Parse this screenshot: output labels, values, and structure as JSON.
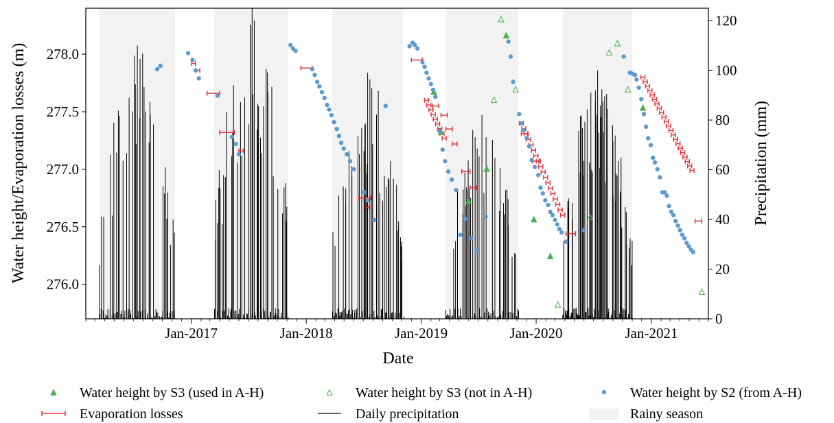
{
  "chart_data": {
    "type": "scatter",
    "xlabel": "Date",
    "ylabel_left": "Water height/Evaporation losses (m)",
    "ylabel_right": "Precipitation (mm)",
    "xlim": [
      "2016-02-01",
      "2021-07-01"
    ],
    "ylim_left": [
      275.7,
      278.4
    ],
    "ylim_right": [
      0,
      125
    ],
    "x_ticks": [
      {
        "date": "2017-01-01",
        "label": "Jan-2017"
      },
      {
        "date": "2018-01-01",
        "label": "Jan-2018"
      },
      {
        "date": "2019-01-01",
        "label": "Jan-2019"
      },
      {
        "date": "2020-01-01",
        "label": "Jan-2020"
      },
      {
        "date": "2021-01-01",
        "label": "Jan-2021"
      }
    ],
    "y_left_ticks": [
      "276.0",
      "276.5",
      "277.0",
      "277.5",
      "278.0"
    ],
    "y_left_tick_values": [
      276.0,
      276.5,
      277.0,
      277.5,
      278.0
    ],
    "y_right_ticks": [
      "0",
      "20",
      "40",
      "60",
      "80",
      "100",
      "120"
    ],
    "y_right_tick_values": [
      0,
      20,
      40,
      60,
      80,
      100,
      120
    ],
    "rainy_seasons": [
      [
        "2016-03-15",
        "2016-11-10"
      ],
      [
        "2017-03-15",
        "2017-11-05"
      ],
      [
        "2018-03-25",
        "2018-11-05"
      ],
      [
        "2019-03-20",
        "2019-11-05"
      ],
      [
        "2020-03-25",
        "2020-11-01"
      ]
    ],
    "precip_bursts": [
      [
        "2016-03-15",
        "2016-11-10",
        82,
        110
      ],
      [
        "2017-03-15",
        "2017-11-05",
        92,
        125
      ],
      [
        "2018-03-25",
        "2018-11-05",
        90,
        99
      ],
      [
        "2019-03-20",
        "2019-11-05",
        78,
        82
      ],
      [
        "2020-03-25",
        "2020-11-01",
        120,
        100
      ]
    ],
    "s2_points": [
      [
        "2016-09-15",
        277.87
      ],
      [
        "2016-09-25",
        277.9
      ],
      [
        "2016-12-22",
        278.01
      ],
      [
        "2017-01-05",
        277.95
      ],
      [
        "2017-01-15",
        277.86
      ],
      [
        "2017-01-25",
        277.79
      ],
      [
        "2017-03-25",
        277.64
      ],
      [
        "2017-05-10",
        277.28
      ],
      [
        "2017-05-22",
        277.22
      ],
      [
        "2017-06-01",
        277.13
      ],
      [
        "2017-11-12",
        278.08
      ],
      [
        "2017-11-20",
        278.05
      ],
      [
        "2017-11-28",
        278.03
      ],
      [
        "2018-01-20",
        277.87
      ],
      [
        "2018-01-28",
        277.82
      ],
      [
        "2018-02-05",
        277.76
      ],
      [
        "2018-02-12",
        277.72
      ],
      [
        "2018-02-20",
        277.67
      ],
      [
        "2018-02-28",
        277.62
      ],
      [
        "2018-03-08",
        277.56
      ],
      [
        "2018-03-15",
        277.52
      ],
      [
        "2018-03-22",
        277.47
      ],
      [
        "2018-03-30",
        277.41
      ],
      [
        "2018-04-08",
        277.35
      ],
      [
        "2018-04-15",
        277.29
      ],
      [
        "2018-04-22",
        277.23
      ],
      [
        "2018-04-30",
        277.18
      ],
      [
        "2018-05-10",
        277.13
      ],
      [
        "2018-05-20",
        277.07
      ],
      [
        "2018-06-01",
        277.0
      ],
      [
        "2018-07-05",
        276.8
      ],
      [
        "2018-07-15",
        276.73
      ],
      [
        "2018-08-05",
        276.56
      ],
      [
        "2018-09-10",
        277.55
      ],
      [
        "2018-11-25",
        278.07
      ],
      [
        "2018-12-05",
        278.1
      ],
      [
        "2018-12-12",
        278.08
      ],
      [
        "2018-12-20",
        278.05
      ],
      [
        "2019-01-05",
        277.93
      ],
      [
        "2019-01-12",
        277.89
      ],
      [
        "2019-01-18",
        277.84
      ],
      [
        "2019-01-25",
        277.79
      ],
      [
        "2019-02-01",
        277.74
      ],
      [
        "2019-02-08",
        277.69
      ],
      [
        "2019-02-15",
        277.63
      ],
      [
        "2019-03-01",
        277.33
      ],
      [
        "2019-03-10",
        277.17
      ],
      [
        "2019-03-18",
        277.07
      ],
      [
        "2019-03-28",
        276.98
      ],
      [
        "2019-04-08",
        276.91
      ],
      [
        "2019-04-22",
        276.82
      ],
      [
        "2019-05-05",
        276.43
      ],
      [
        "2019-05-20",
        276.57
      ],
      [
        "2019-06-10",
        276.4
      ],
      [
        "2019-06-25",
        276.3
      ],
      [
        "2019-07-25",
        276.59
      ],
      [
        "2019-10-05",
        278.11
      ],
      [
        "2019-10-12",
        277.98
      ],
      [
        "2019-10-20",
        277.76
      ],
      [
        "2019-11-08",
        277.48
      ],
      [
        "2019-11-15",
        277.4
      ],
      [
        "2019-11-22",
        277.34
      ],
      [
        "2019-12-02",
        277.27
      ],
      [
        "2019-12-10",
        277.2
      ],
      [
        "2019-12-18",
        277.08
      ],
      [
        "2019-12-28",
        277.02
      ],
      [
        "2020-01-08",
        276.95
      ],
      [
        "2020-01-15",
        276.84
      ],
      [
        "2020-01-22",
        276.79
      ],
      [
        "2020-01-30",
        276.73
      ],
      [
        "2020-02-08",
        276.69
      ],
      [
        "2020-02-15",
        276.63
      ],
      [
        "2020-02-22",
        276.6
      ],
      [
        "2020-03-01",
        276.56
      ],
      [
        "2020-03-08",
        276.52
      ],
      [
        "2020-03-15",
        276.48
      ],
      [
        "2020-03-22",
        276.45
      ],
      [
        "2020-04-05",
        276.37
      ],
      [
        "2020-06-01",
        276.47
      ],
      [
        "2020-10-05",
        277.98
      ],
      [
        "2020-10-25",
        277.84
      ],
      [
        "2020-11-02",
        277.83
      ],
      [
        "2020-11-10",
        277.82
      ],
      [
        "2020-11-15",
        277.78
      ],
      [
        "2020-11-22",
        277.71
      ],
      [
        "2020-11-30",
        277.61
      ],
      [
        "2020-12-08",
        277.48
      ],
      [
        "2020-12-15",
        277.37
      ],
      [
        "2020-12-22",
        277.27
      ],
      [
        "2020-12-30",
        277.21
      ],
      [
        "2021-01-06",
        277.1
      ],
      [
        "2021-01-12",
        277.06
      ],
      [
        "2021-01-20",
        277.0
      ],
      [
        "2021-01-28",
        276.93
      ],
      [
        "2021-02-05",
        276.8
      ],
      [
        "2021-02-12",
        276.8
      ],
      [
        "2021-02-19",
        276.77
      ],
      [
        "2021-02-26",
        276.68
      ],
      [
        "2021-03-05",
        276.63
      ],
      [
        "2021-03-12",
        276.6
      ],
      [
        "2021-03-19",
        276.55
      ],
      [
        "2021-03-26",
        276.51
      ],
      [
        "2021-04-02",
        276.47
      ],
      [
        "2021-04-09",
        276.43
      ],
      [
        "2021-04-16",
        276.4
      ],
      [
        "2021-04-23",
        276.36
      ],
      [
        "2021-04-30",
        276.33
      ],
      [
        "2021-05-07",
        276.3
      ],
      [
        "2021-05-14",
        276.28
      ]
    ],
    "s3_used_points": [
      [
        "2019-02-10",
        277.67
      ],
      [
        "2019-03-05",
        277.32
      ],
      [
        "2019-06-01",
        276.72
      ],
      [
        "2019-07-28",
        277.0
      ],
      [
        "2019-09-28",
        278.16
      ],
      [
        "2019-12-25",
        276.56
      ],
      [
        "2020-02-15",
        276.24
      ],
      [
        "2020-12-05",
        277.53
      ]
    ],
    "s3_not_used_points": [
      [
        "2019-08-20",
        277.6
      ],
      [
        "2019-09-12",
        278.3
      ],
      [
        "2019-10-28",
        277.69
      ],
      [
        "2020-03-10",
        275.82
      ],
      [
        "2020-06-20",
        276.58
      ],
      [
        "2020-08-20",
        278.01
      ],
      [
        "2020-09-15",
        278.09
      ],
      [
        "2020-10-18",
        277.69
      ],
      [
        "2021-06-10",
        275.93
      ]
    ],
    "evap_segments": [
      [
        "2017-01-02",
        "2017-01-14",
        277.92
      ],
      [
        "2017-01-14",
        "2017-01-28",
        277.86
      ],
      [
        "2017-02-20",
        "2017-04-01",
        277.66
      ],
      [
        "2017-04-01",
        "2017-05-18",
        277.32
      ],
      [
        "2017-06-01",
        "2017-06-15",
        277.16
      ],
      [
        "2017-12-15",
        "2018-01-20",
        277.88
      ],
      [
        "2018-06-15",
        "2018-07-25",
        276.75
      ],
      [
        "2018-07-10",
        "2018-07-20",
        276.67
      ],
      [
        "2018-12-01",
        "2019-01-05",
        277.95
      ],
      [
        "2019-02-05",
        "2019-02-25",
        277.55
      ],
      [
        "2019-03-05",
        "2019-03-25",
        277.47
      ],
      [
        "2019-03-20",
        "2019-04-10",
        277.35
      ],
      [
        "2019-04-10",
        "2019-04-25",
        277.22
      ],
      [
        "2019-05-10",
        "2019-06-05",
        276.98
      ],
      [
        "2019-06-05",
        "2019-06-25",
        276.84
      ],
      [
        "2019-11-15",
        "2019-12-05",
        277.31
      ],
      [
        "2019-12-20",
        "2020-01-10",
        277.07
      ],
      [
        "2020-04-05",
        "2020-05-05",
        276.44
      ],
      [
        "2021-05-20",
        "2021-06-10",
        276.55
      ]
    ],
    "evap_bar_chains": [
      [
        "2019-01-18",
        "2019-03-15",
        277.6,
        277.27,
        9
      ],
      [
        "2019-11-15",
        "2020-03-25",
        277.4,
        276.6,
        18
      ],
      [
        "2020-12-05",
        "2021-05-10",
        277.8,
        276.99,
        22
      ]
    ],
    "legend": [
      {
        "key": "s3_used",
        "label": "Water height by S3 (used in A-H)"
      },
      {
        "key": "s3_not",
        "label": "Water height by S3 (not in A-H)"
      },
      {
        "key": "s2",
        "label": "Water height by S2 (from A-H)"
      },
      {
        "key": "evap",
        "label": "Evaporation losses"
      },
      {
        "key": "precip",
        "label": "Daily precipitation"
      },
      {
        "key": "rainy",
        "label": "Rainy season"
      }
    ],
    "colors": {
      "s2": "#5b9bd0",
      "s3_used": "#4caf50",
      "s3_not": "#5cb85c",
      "evap": "#e2363d",
      "precip": "#000000",
      "rainy": "#f2f2f2"
    }
  }
}
